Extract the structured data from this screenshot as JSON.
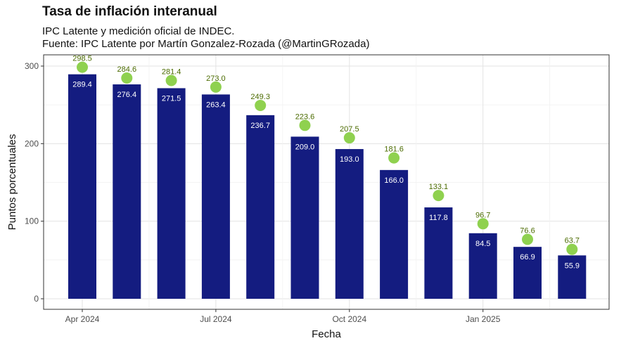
{
  "chart_data": {
    "type": "bar",
    "title": "Tasa de inflación interanual",
    "subtitle_lines": [
      "IPC Latente y medición oficial de INDEC.",
      "Fuente: IPC Latente por Martín Gonzalez-Rozada (@MartinGRozada)"
    ],
    "xlabel": "Fecha",
    "ylabel": "Puntos porcentuales",
    "ylim": [
      0,
      300
    ],
    "yticks": [
      0,
      100,
      200,
      300
    ],
    "categories": [
      "2024-04",
      "2024-05",
      "2024-06",
      "2024-07",
      "2024-08",
      "2024-09",
      "2024-10",
      "2024-11",
      "2024-12",
      "2025-01",
      "2025-02",
      "2025-03"
    ],
    "x_tick_labels": [
      {
        "category": "2024-04",
        "label": "Apr 2024"
      },
      {
        "category": "2024-07",
        "label": "Jul 2024"
      },
      {
        "category": "2024-10",
        "label": "Oct 2024"
      },
      {
        "category": "2025-01",
        "label": "Jan 2025"
      }
    ],
    "series": [
      {
        "kind": "bar",
        "color": "#141c80",
        "values": [
          289.4,
          276.4,
          271.5,
          263.4,
          236.7,
          209.0,
          193.0,
          166.0,
          117.8,
          84.5,
          66.9,
          55.9
        ]
      },
      {
        "kind": "point",
        "color": "#8fd14f",
        "values": [
          298.5,
          284.6,
          281.4,
          273.0,
          249.3,
          223.6,
          207.5,
          181.6,
          133.1,
          96.7,
          76.6,
          63.7
        ]
      }
    ],
    "grid": true
  }
}
